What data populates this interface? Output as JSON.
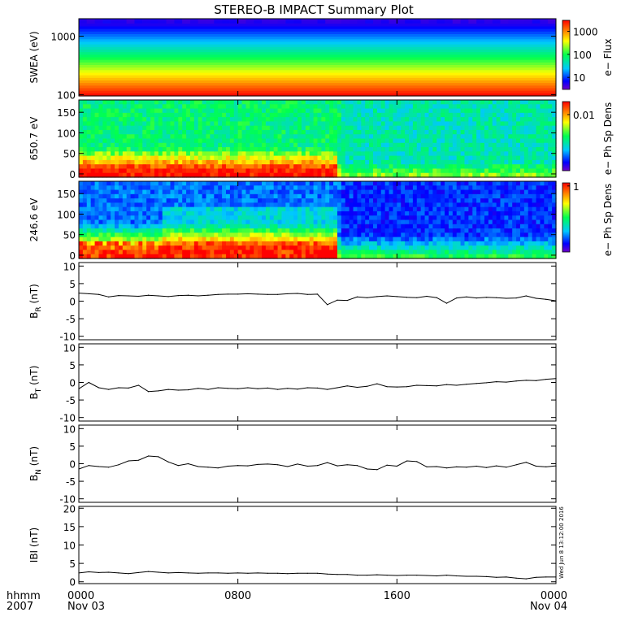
{
  "title": "STEREO-B IMPACT Summary Plot",
  "timestamp": "Wed Jun  8 13:12:00 2016",
  "x_axis": {
    "hhmm_label": "hhmm",
    "year_label": "2007",
    "ticks": [
      {
        "t": 0,
        "label": "0000",
        "date": "Nov 03"
      },
      {
        "t": 8,
        "label": "0800",
        "date": ""
      },
      {
        "t": 16,
        "label": "1600",
        "date": ""
      },
      {
        "t": 24,
        "label": "0000",
        "date": "Nov 04"
      }
    ]
  },
  "chart_data": [
    {
      "type": "heatmap",
      "ylabel": "SWEA (eV)",
      "y_scale": "log",
      "ylim": [
        95,
        2000
      ],
      "y_ticks": [
        {
          "v": 100,
          "label": "100"
        },
        {
          "v": 1000,
          "label": "1000"
        }
      ],
      "colorbar": {
        "label": "e− Flux",
        "scale": "log",
        "range": [
          3,
          3000
        ],
        "ticks": [
          {
            "v": 10,
            "label": "10"
          },
          {
            "v": 100,
            "label": "100"
          },
          {
            "v": 1000,
            "label": "1000"
          }
        ]
      },
      "description_bands_eV": [
        [
          95,
          3000
        ],
        [
          150,
          1300
        ],
        [
          300,
          400
        ],
        [
          600,
          100
        ],
        [
          1000,
          20
        ],
        [
          1600,
          5
        ]
      ]
    },
    {
      "type": "heatmap",
      "ylabel": "650.7 eV",
      "y_scale": "linear",
      "ylim": [
        -8,
        180
      ],
      "y_ticks": [
        {
          "v": 0,
          "label": "0"
        },
        {
          "v": 50,
          "label": "50"
        },
        {
          "v": 100,
          "label": "100"
        },
        {
          "v": 150,
          "label": "150"
        }
      ],
      "colorbar": {
        "label": "e− Ph Sp Dens",
        "scale": "log",
        "range": [
          0.0005,
          0.02
        ],
        "ticks": [
          {
            "v": 0.01,
            "label": "0.01"
          }
        ]
      }
    },
    {
      "type": "heatmap",
      "ylabel": "246.6 eV",
      "y_scale": "linear",
      "ylim": [
        -8,
        180
      ],
      "y_ticks": [
        {
          "v": 0,
          "label": "0"
        },
        {
          "v": 50,
          "label": "50"
        },
        {
          "v": 100,
          "label": "100"
        },
        {
          "v": 150,
          "label": "150"
        }
      ],
      "colorbar": {
        "label": "e− Ph Sp Dens",
        "scale": "log",
        "range": [
          0.02,
          1.2
        ],
        "ticks": [
          {
            "v": 1,
            "label": "1"
          }
        ]
      }
    },
    {
      "type": "line",
      "ylabel": "B",
      "ysub": "R",
      "yunit": "(nT)",
      "ylim": [
        -11,
        11
      ],
      "y_ticks": [
        -10,
        -5,
        0,
        5,
        10
      ],
      "x_hours": [
        0,
        0.5,
        1,
        1.5,
        2,
        2.5,
        3,
        3.5,
        4,
        4.5,
        5,
        5.5,
        6,
        6.5,
        7,
        7.5,
        8,
        8.5,
        9,
        9.5,
        10,
        10.5,
        11,
        11.5,
        12,
        12.5,
        13,
        13.5,
        14,
        14.5,
        15,
        15.5,
        16,
        16.5,
        17,
        17.5,
        18,
        18.5,
        19,
        19.5,
        20,
        20.5,
        21,
        21.5,
        22,
        22.5,
        23,
        23.5,
        24
      ],
      "values": [
        2.3,
        2.1,
        1.9,
        1.2,
        1.6,
        1.5,
        1.4,
        1.7,
        1.5,
        1.3,
        1.6,
        1.7,
        1.5,
        1.7,
        1.9,
        2.0,
        2.0,
        2.1,
        2.0,
        1.9,
        1.9,
        2.1,
        2.2,
        1.9,
        2.0,
        -1.0,
        0.3,
        0.2,
        1.2,
        1.0,
        1.3,
        1.5,
        1.3,
        1.1,
        1.0,
        1.4,
        1.0,
        -0.6,
        0.9,
        1.2,
        0.9,
        1.1,
        1.0,
        0.8,
        0.9,
        1.5,
        0.8,
        0.5,
        0.1
      ]
    },
    {
      "type": "line",
      "ylabel": "B",
      "ysub": "T",
      "yunit": "(nT)",
      "ylim": [
        -11,
        11
      ],
      "y_ticks": [
        -10,
        -5,
        0,
        5,
        10
      ],
      "x_hours": [
        0,
        0.5,
        1,
        1.5,
        2,
        2.5,
        3,
        3.5,
        4,
        4.5,
        5,
        5.5,
        6,
        6.5,
        7,
        7.5,
        8,
        8.5,
        9,
        9.5,
        10,
        10.5,
        11,
        11.5,
        12,
        12.5,
        13,
        13.5,
        14,
        14.5,
        15,
        15.5,
        16,
        16.5,
        17,
        17.5,
        18,
        18.5,
        19,
        19.5,
        20,
        20.5,
        21,
        21.5,
        22,
        22.5,
        23,
        23.5,
        24
      ],
      "values": [
        -1.8,
        0.0,
        -1.5,
        -2.0,
        -1.5,
        -1.6,
        -0.8,
        -2.6,
        -2.4,
        -2.0,
        -2.2,
        -2.1,
        -1.7,
        -2.0,
        -1.5,
        -1.7,
        -1.8,
        -1.5,
        -1.8,
        -1.6,
        -2.0,
        -1.7,
        -1.9,
        -1.5,
        -1.6,
        -2.0,
        -1.5,
        -1.0,
        -1.4,
        -1.1,
        -0.4,
        -1.2,
        -1.3,
        -1.2,
        -0.8,
        -0.9,
        -1.0,
        -0.6,
        -0.8,
        -0.5,
        -0.3,
        -0.1,
        0.2,
        0.1,
        0.4,
        0.6,
        0.5,
        0.9,
        1.1
      ]
    },
    {
      "type": "line",
      "ylabel": "B",
      "ysub": "N",
      "yunit": "(nT)",
      "ylim": [
        -11,
        11
      ],
      "y_ticks": [
        -10,
        -5,
        0,
        5,
        10
      ],
      "x_hours": [
        0,
        0.5,
        1,
        1.5,
        2,
        2.5,
        3,
        3.5,
        4,
        4.5,
        5,
        5.5,
        6,
        6.5,
        7,
        7.5,
        8,
        8.5,
        9,
        9.5,
        10,
        10.5,
        11,
        11.5,
        12,
        12.5,
        13,
        13.5,
        14,
        14.5,
        15,
        15.5,
        16,
        16.5,
        17,
        17.5,
        18,
        18.5,
        19,
        19.5,
        20,
        20.5,
        21,
        21.5,
        22,
        22.5,
        23,
        23.5,
        24
      ],
      "values": [
        -1.5,
        -0.5,
        -0.8,
        -1.0,
        -0.3,
        0.8,
        1.0,
        2.2,
        2.0,
        0.5,
        -0.5,
        0.0,
        -0.8,
        -1.0,
        -1.2,
        -0.7,
        -0.5,
        -0.6,
        -0.2,
        -0.1,
        -0.3,
        -0.8,
        -0.1,
        -0.7,
        -0.5,
        0.3,
        -0.6,
        -0.3,
        -0.5,
        -1.5,
        -1.7,
        -0.4,
        -0.7,
        0.8,
        0.6,
        -0.9,
        -0.8,
        -1.2,
        -0.9,
        -1.0,
        -0.7,
        -1.1,
        -0.6,
        -1.0,
        -0.3,
        0.4,
        -0.7,
        -0.9,
        -0.6
      ]
    },
    {
      "type": "line",
      "ylabel": "IBI",
      "ysub": "",
      "yunit": "(nT)",
      "ylim": [
        -0.5,
        20.5
      ],
      "y_ticks": [
        0,
        5,
        10,
        15,
        20
      ],
      "x_hours": [
        0,
        0.5,
        1,
        1.5,
        2,
        2.5,
        3,
        3.5,
        4,
        4.5,
        5,
        5.5,
        6,
        6.5,
        7,
        7.5,
        8,
        8.5,
        9,
        9.5,
        10,
        10.5,
        11,
        11.5,
        12,
        12.5,
        13,
        13.5,
        14,
        14.5,
        15,
        15.5,
        16,
        16.5,
        17,
        17.5,
        18,
        18.5,
        19,
        19.5,
        20,
        20.5,
        21,
        21.5,
        22,
        22.5,
        23,
        23.5,
        24
      ],
      "values": [
        2.4,
        2.7,
        2.5,
        2.6,
        2.4,
        2.2,
        2.5,
        2.8,
        2.6,
        2.4,
        2.5,
        2.4,
        2.3,
        2.4,
        2.4,
        2.3,
        2.4,
        2.3,
        2.4,
        2.3,
        2.3,
        2.2,
        2.3,
        2.3,
        2.3,
        2.1,
        2.0,
        2.0,
        1.8,
        1.8,
        1.9,
        1.8,
        1.7,
        1.8,
        1.8,
        1.7,
        1.6,
        1.8,
        1.6,
        1.5,
        1.5,
        1.4,
        1.2,
        1.3,
        1.0,
        0.8,
        1.2,
        1.3,
        1.3
      ]
    }
  ]
}
